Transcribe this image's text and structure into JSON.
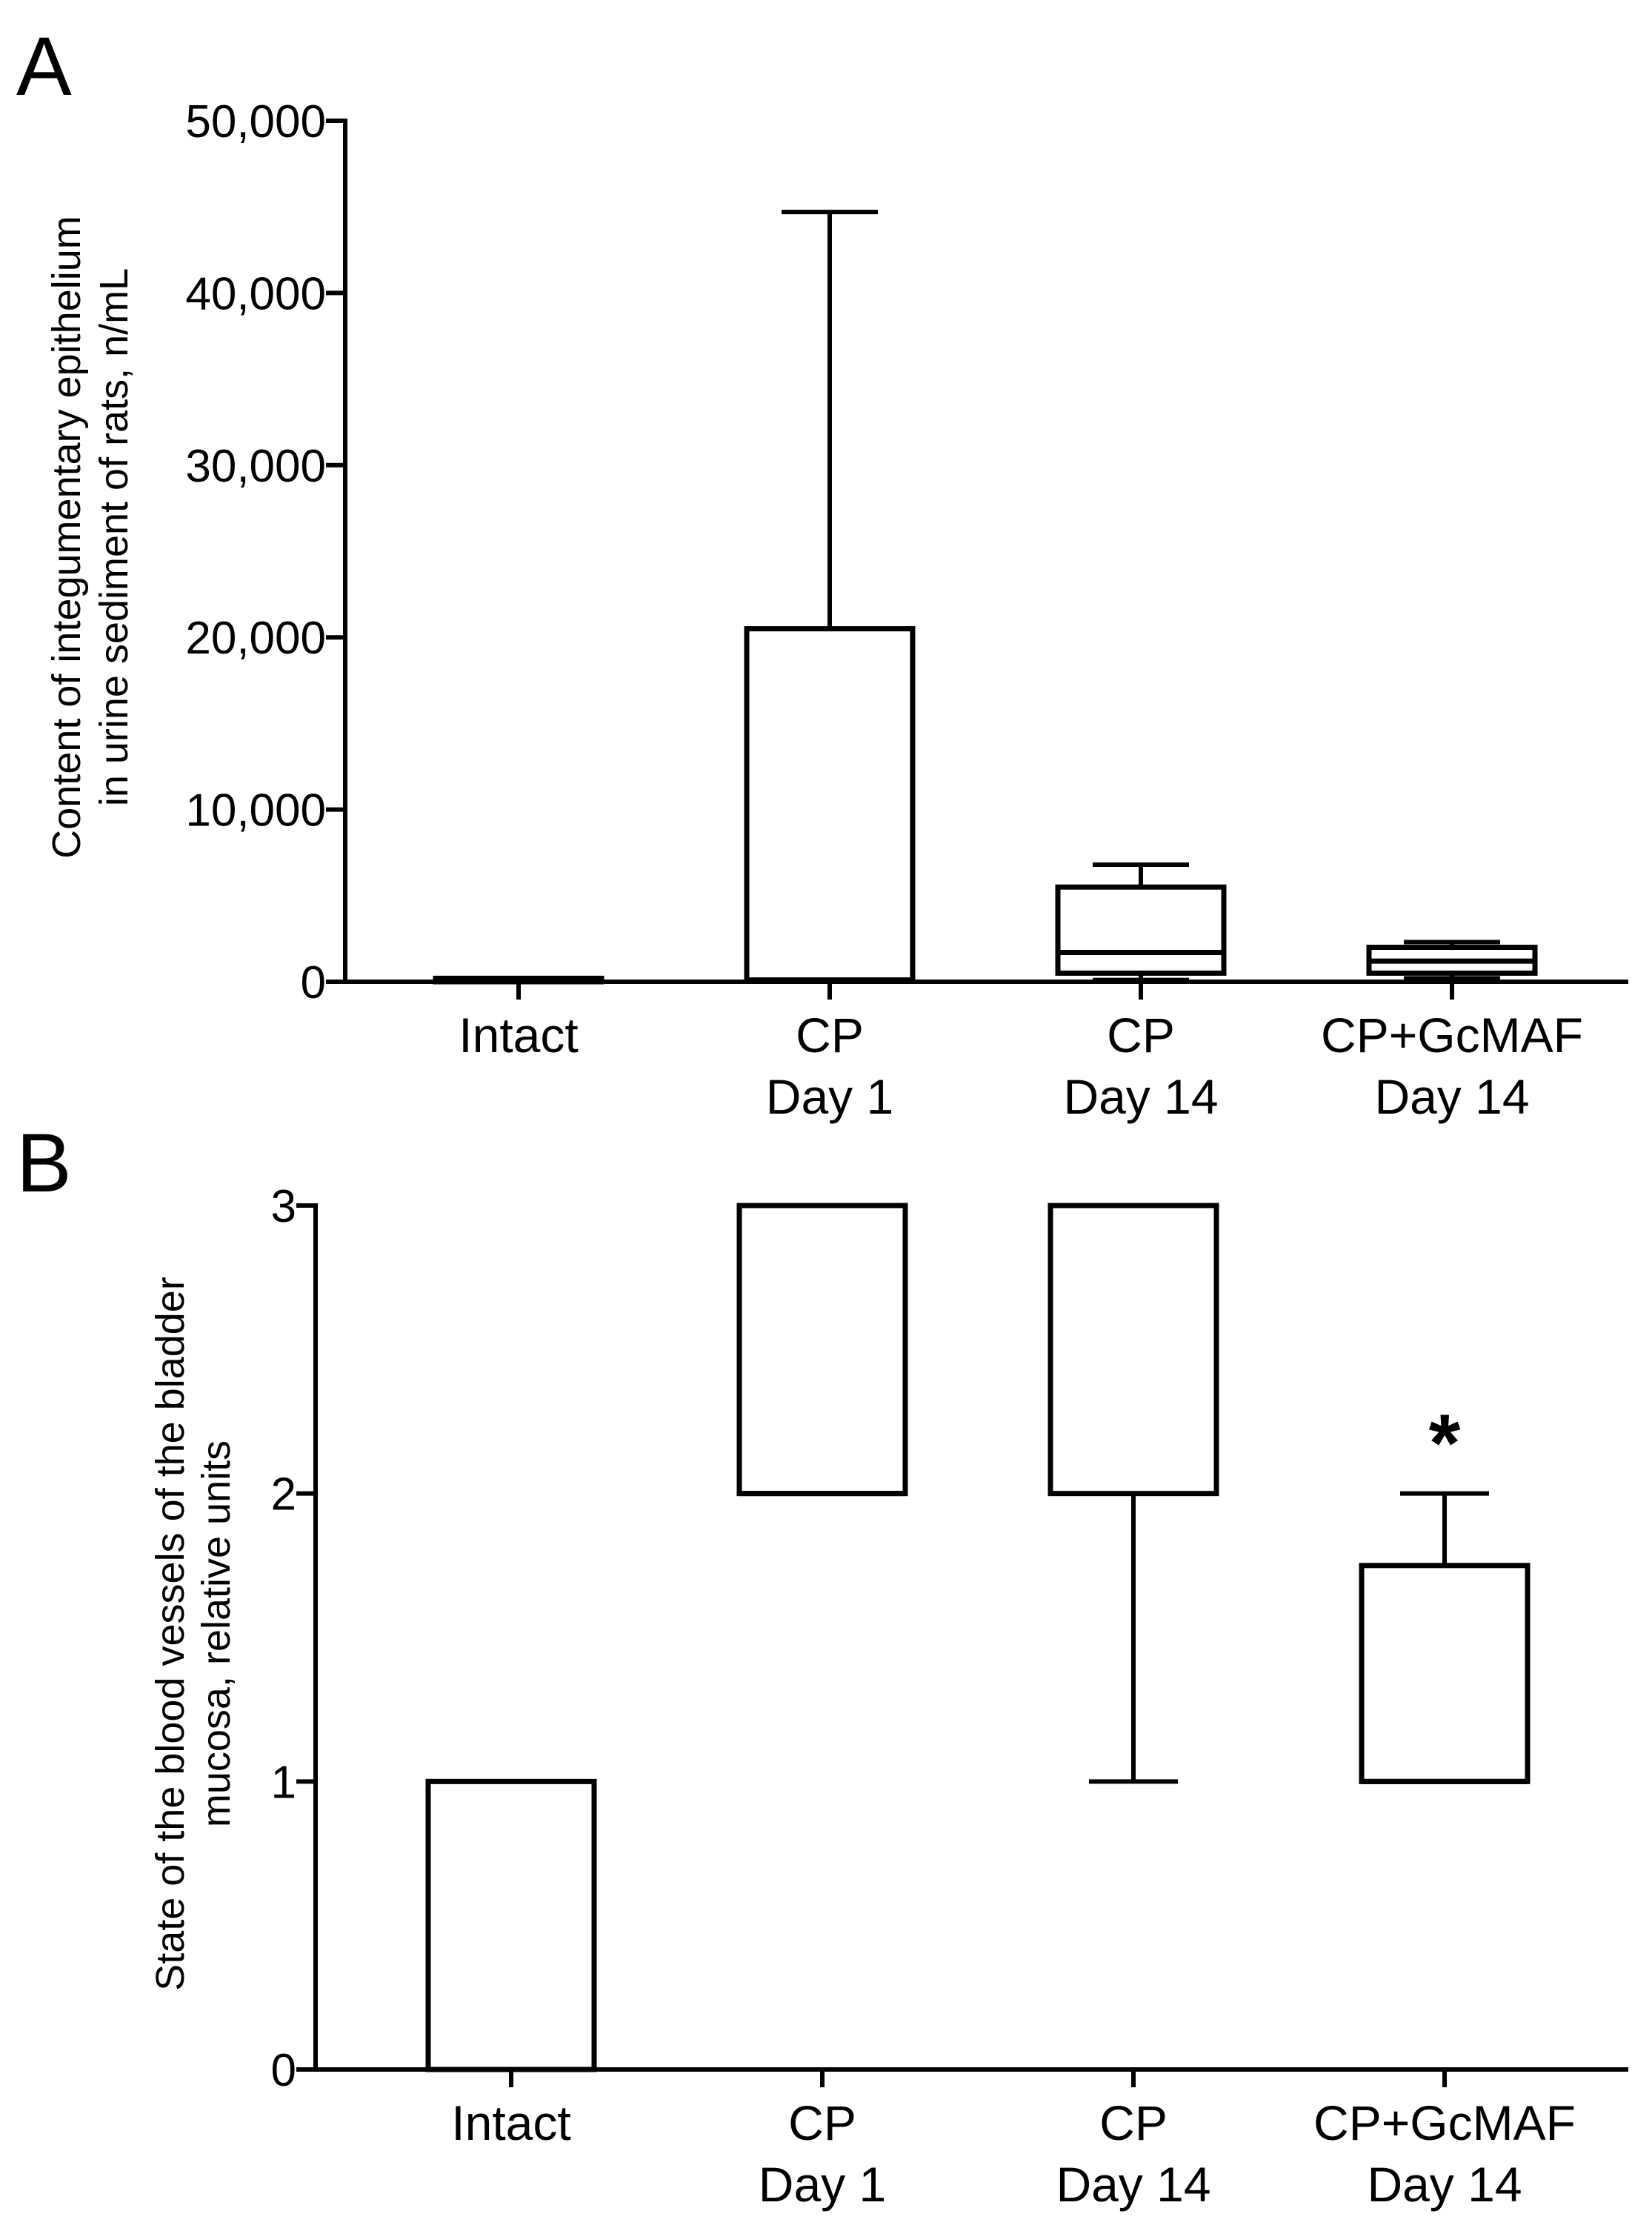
{
  "figure": {
    "panels": [
      "A",
      "B"
    ]
  },
  "chart_data": [
    {
      "panel": "A",
      "type": "box",
      "title": "",
      "categories": [
        [
          "Intact"
        ],
        [
          "CP",
          "Day 1"
        ],
        [
          "CP",
          "Day 14"
        ],
        [
          "CP+GcMAF",
          "Day 14"
        ]
      ],
      "ylabel": [
        "Content of integumentary epithelium",
        "in urine sediment of rats, n/mL"
      ],
      "ylim": [
        0,
        50000
      ],
      "yticks": [
        0,
        10000,
        20000,
        30000,
        40000,
        50000
      ],
      "ytick_labels": [
        "0",
        "10,000",
        "20,000",
        "30,000",
        "40,000",
        "50,000"
      ],
      "boxes": [
        {
          "min": 0,
          "q1": 0,
          "median": 0,
          "q3": 200,
          "max": 200
        },
        {
          "min": 0,
          "q1": 100,
          "median": 100,
          "q3": 20500,
          "max": 44700
        },
        {
          "min": 100,
          "q1": 500,
          "median": 1700,
          "q3": 5500,
          "max": 6800
        },
        {
          "min": 200,
          "q1": 500,
          "median": 1200,
          "q3": 2000,
          "max": 2300
        }
      ],
      "annotations": []
    },
    {
      "panel": "B",
      "type": "box",
      "title": "",
      "categories": [
        [
          "Intact"
        ],
        [
          "CP",
          "Day 1"
        ],
        [
          "CP",
          "Day 14"
        ],
        [
          "CP+GcMAF",
          "Day 14"
        ]
      ],
      "ylabel": [
        "State of the blood vessels of the bladder",
        "mucosa, relative units"
      ],
      "ylim": [
        0,
        3
      ],
      "yticks": [
        0,
        1,
        2,
        3
      ],
      "ytick_labels": [
        "0",
        "1",
        "2",
        "3"
      ],
      "boxes": [
        {
          "min": 0,
          "q1": 0,
          "median": 0,
          "q3": 1,
          "max": 1
        },
        {
          "min": 2,
          "q1": 2,
          "median": 2,
          "q3": 3,
          "max": 3
        },
        {
          "min": 1,
          "q1": 2,
          "median": 3,
          "q3": 3,
          "max": 3
        },
        {
          "min": 1,
          "q1": 1,
          "median": 1,
          "q3": 1.75,
          "max": 2
        }
      ],
      "annotations": [
        {
          "category_index": 3,
          "text": "*"
        }
      ]
    }
  ]
}
